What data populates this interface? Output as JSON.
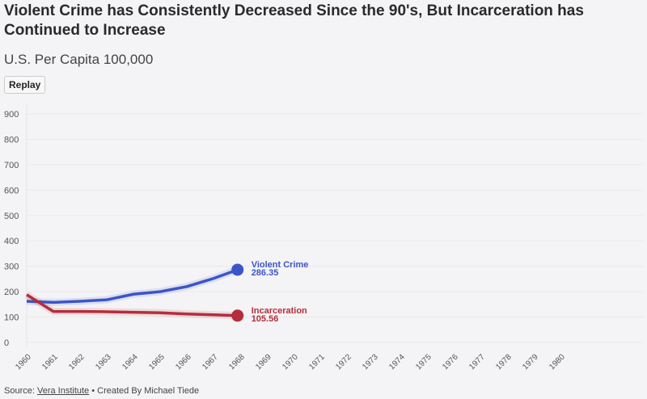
{
  "title": "Violent Crime has Consistently Decreased Since the 90's, But Incarceration has Continued to Increase",
  "subtitle": "U.S. Per Capita 100,000",
  "replay_label": "Replay",
  "source": {
    "prefix": "Source: ",
    "link": "Vera Institute",
    "suffix": " • Created By Michael Tiede"
  },
  "chart_data": {
    "type": "line",
    "xlim": [
      1960,
      1980
    ],
    "ylim": [
      0,
      900
    ],
    "yticks": [
      0,
      100,
      200,
      300,
      400,
      500,
      600,
      700,
      800,
      900
    ],
    "xticks": [
      "1960",
      "1961",
      "1962",
      "1963",
      "1964",
      "1965",
      "1966",
      "1967",
      "1968",
      "1969",
      "1970",
      "1971",
      "1972",
      "1973",
      "1974",
      "1975",
      "1976",
      "1977",
      "1978",
      "1979",
      "1980"
    ],
    "grid": true,
    "series": [
      {
        "name": "Violent Crime",
        "color": "#3b55c9",
        "end_label": "286.35",
        "x": [
          1960,
          1961,
          1962,
          1963,
          1964,
          1965,
          1966,
          1967,
          1967.9
        ],
        "y": [
          162,
          158,
          162,
          168,
          190,
          200,
          220,
          252,
          286.35
        ]
      },
      {
        "name": "Incarceration",
        "color": "#b52d3b",
        "end_label": "105.56",
        "x": [
          1960,
          1961,
          1962,
          1963,
          1964,
          1965,
          1966,
          1967,
          1967.9
        ],
        "y": [
          188,
          122,
          122,
          121,
          119,
          117,
          112,
          109,
          105.56
        ]
      }
    ]
  }
}
